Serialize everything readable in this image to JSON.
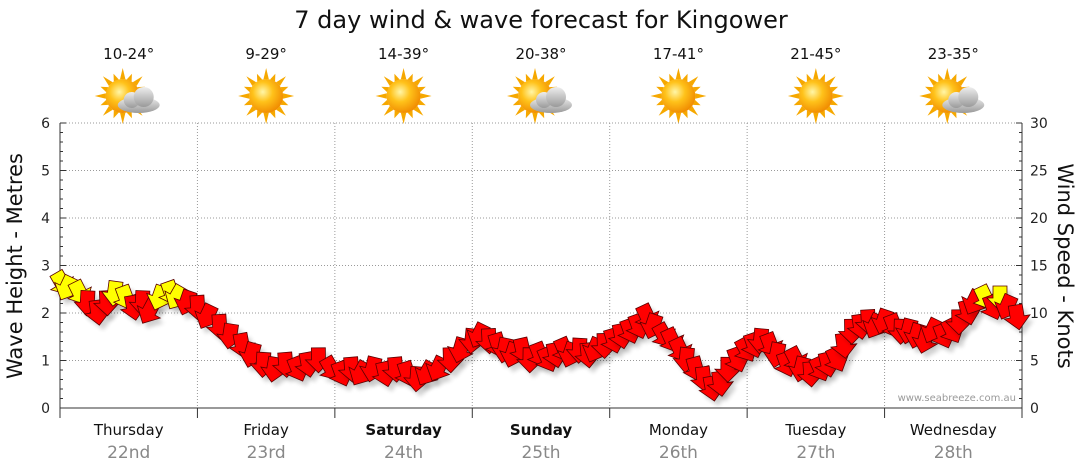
{
  "chart_data": {
    "type": "line",
    "title": "7 day wind & wave forecast for Kingower",
    "left_axis": {
      "label": "Wave Height - Metres",
      "min": 0,
      "max": 6,
      "ticks": [
        "0",
        "1",
        "2",
        "3",
        "4",
        "5",
        "6"
      ]
    },
    "right_axis": {
      "label": "Wind Speed - Knots",
      "min": 0,
      "max": 30,
      "ticks": [
        "0",
        "5",
        "10",
        "15",
        "20",
        "25",
        "30"
      ]
    },
    "grid": true,
    "days": [
      {
        "name": "Thursday",
        "date": "22nd",
        "temp": "10-24°",
        "weather_icon": "sun-cloud-icon",
        "bold": false
      },
      {
        "name": "Friday",
        "date": "23rd",
        "temp": "9-29°",
        "weather_icon": "sun-icon",
        "bold": false
      },
      {
        "name": "Saturday",
        "date": "24th",
        "temp": "14-39°",
        "weather_icon": "sun-icon",
        "bold": true
      },
      {
        "name": "Sunday",
        "date": "25th",
        "temp": "20-38°",
        "weather_icon": "sun-cloud-icon",
        "bold": true
      },
      {
        "name": "Monday",
        "date": "26th",
        "temp": "17-41°",
        "weather_icon": "sun-icon",
        "bold": false
      },
      {
        "name": "Tuesday",
        "date": "27th",
        "temp": "21-45°",
        "weather_icon": "sun-icon",
        "bold": false
      },
      {
        "name": "Wednesday",
        "date": "28th",
        "temp": "23-35°",
        "weather_icon": "sun-cloud-icon",
        "bold": false
      }
    ],
    "series": [
      {
        "name": "Wind Speed",
        "units": "knots",
        "marker": "wind-arrow",
        "colors": {
          "strong": "#ff0000",
          "light": "#ffff00"
        },
        "points": [
          {
            "day": 0.0,
            "knots": 13.5
          },
          {
            "day": 0.06,
            "knots": 13.0
          },
          {
            "day": 0.13,
            "knots": 12.5
          },
          {
            "day": 0.2,
            "knots": 11.5
          },
          {
            "day": 0.27,
            "knots": 10.5
          },
          {
            "day": 0.34,
            "knots": 11.5
          },
          {
            "day": 0.4,
            "knots": 12.5
          },
          {
            "day": 0.47,
            "knots": 12.0
          },
          {
            "day": 0.53,
            "knots": 11.0
          },
          {
            "day": 0.6,
            "knots": 11.5
          },
          {
            "day": 0.66,
            "knots": 10.5
          },
          {
            "day": 0.73,
            "knots": 12.0
          },
          {
            "day": 0.8,
            "knots": 12.5
          },
          {
            "day": 0.86,
            "knots": 12.0
          },
          {
            "day": 0.93,
            "knots": 11.5
          },
          {
            "day": 1.0,
            "knots": 11.0
          },
          {
            "day": 1.08,
            "knots": 10.0
          },
          {
            "day": 1.16,
            "knots": 9.0
          },
          {
            "day": 1.24,
            "knots": 8.0
          },
          {
            "day": 1.32,
            "knots": 7.0
          },
          {
            "day": 1.4,
            "knots": 6.0
          },
          {
            "day": 1.48,
            "knots": 5.0
          },
          {
            "day": 1.56,
            "knots": 4.5
          },
          {
            "day": 1.64,
            "knots": 5.0
          },
          {
            "day": 1.72,
            "knots": 4.5
          },
          {
            "day": 1.8,
            "knots": 5.0
          },
          {
            "day": 1.88,
            "knots": 5.5
          },
          {
            "day": 1.96,
            "knots": 4.5
          },
          {
            "day": 2.04,
            "knots": 4.0
          },
          {
            "day": 2.12,
            "knots": 4.5
          },
          {
            "day": 2.2,
            "knots": 4.0
          },
          {
            "day": 2.28,
            "knots": 4.5
          },
          {
            "day": 2.36,
            "knots": 4.0
          },
          {
            "day": 2.44,
            "knots": 4.5
          },
          {
            "day": 2.52,
            "knots": 4.0
          },
          {
            "day": 2.6,
            "knots": 3.5
          },
          {
            "day": 2.68,
            "knots": 4.0
          },
          {
            "day": 2.76,
            "knots": 4.5
          },
          {
            "day": 2.84,
            "knots": 5.5
          },
          {
            "day": 2.92,
            "knots": 6.5
          },
          {
            "day": 3.0,
            "knots": 7.5
          },
          {
            "day": 3.06,
            "knots": 8.0
          },
          {
            "day": 3.12,
            "knots": 7.5
          },
          {
            "day": 3.18,
            "knots": 7.0
          },
          {
            "day": 3.24,
            "knots": 6.5
          },
          {
            "day": 3.3,
            "knots": 6.0
          },
          {
            "day": 3.36,
            "knots": 6.5
          },
          {
            "day": 3.42,
            "knots": 5.5
          },
          {
            "day": 3.48,
            "knots": 6.0
          },
          {
            "day": 3.54,
            "knots": 5.5
          },
          {
            "day": 3.6,
            "knots": 6.0
          },
          {
            "day": 3.66,
            "knots": 6.5
          },
          {
            "day": 3.72,
            "knots": 6.0
          },
          {
            "day": 3.78,
            "knots": 6.5
          },
          {
            "day": 3.84,
            "knots": 6.0
          },
          {
            "day": 3.9,
            "knots": 6.5
          },
          {
            "day": 3.96,
            "knots": 7.0
          },
          {
            "day": 4.02,
            "knots": 7.5
          },
          {
            "day": 4.08,
            "knots": 8.0
          },
          {
            "day": 4.14,
            "knots": 8.5
          },
          {
            "day": 4.2,
            "knots": 9.0
          },
          {
            "day": 4.26,
            "knots": 10.0
          },
          {
            "day": 4.32,
            "knots": 9.0
          },
          {
            "day": 4.38,
            "knots": 8.0
          },
          {
            "day": 4.44,
            "knots": 7.5
          },
          {
            "day": 4.5,
            "knots": 6.5
          },
          {
            "day": 4.56,
            "knots": 5.5
          },
          {
            "day": 4.62,
            "knots": 4.5
          },
          {
            "day": 4.68,
            "knots": 3.5
          },
          {
            "day": 4.74,
            "knots": 2.5
          },
          {
            "day": 4.8,
            "knots": 3.0
          },
          {
            "day": 4.86,
            "knots": 4.5
          },
          {
            "day": 4.92,
            "knots": 5.5
          },
          {
            "day": 4.98,
            "knots": 6.5
          },
          {
            "day": 5.04,
            "knots": 7.0
          },
          {
            "day": 5.1,
            "knots": 7.5
          },
          {
            "day": 5.16,
            "knots": 7.0
          },
          {
            "day": 5.22,
            "knots": 6.0
          },
          {
            "day": 5.28,
            "knots": 5.0
          },
          {
            "day": 5.34,
            "knots": 5.5
          },
          {
            "day": 5.4,
            "knots": 4.5
          },
          {
            "day": 5.46,
            "knots": 4.0
          },
          {
            "day": 5.52,
            "knots": 4.5
          },
          {
            "day": 5.58,
            "knots": 5.0
          },
          {
            "day": 5.64,
            "knots": 5.5
          },
          {
            "day": 5.7,
            "knots": 7.0
          },
          {
            "day": 5.76,
            "knots": 8.5
          },
          {
            "day": 5.82,
            "knots": 9.0
          },
          {
            "day": 5.88,
            "knots": 9.5
          },
          {
            "day": 5.94,
            "knots": 9.0
          },
          {
            "day": 6.0,
            "knots": 9.5
          },
          {
            "day": 6.06,
            "knots": 9.0
          },
          {
            "day": 6.12,
            "knots": 8.5
          },
          {
            "day": 6.18,
            "knots": 8.5
          },
          {
            "day": 6.24,
            "knots": 8.0
          },
          {
            "day": 6.3,
            "knots": 7.5
          },
          {
            "day": 6.36,
            "knots": 8.5
          },
          {
            "day": 6.42,
            "knots": 8.0
          },
          {
            "day": 6.48,
            "knots": 8.5
          },
          {
            "day": 6.54,
            "knots": 9.5
          },
          {
            "day": 6.6,
            "knots": 10.5
          },
          {
            "day": 6.66,
            "knots": 11.5
          },
          {
            "day": 6.72,
            "knots": 12.0
          },
          {
            "day": 6.78,
            "knots": 11.0
          },
          {
            "day": 6.84,
            "knots": 12.0
          },
          {
            "day": 6.9,
            "knots": 11.0
          },
          {
            "day": 6.96,
            "knots": 10.0
          }
        ]
      }
    ],
    "credit": "www.seabreeze.com.au"
  }
}
